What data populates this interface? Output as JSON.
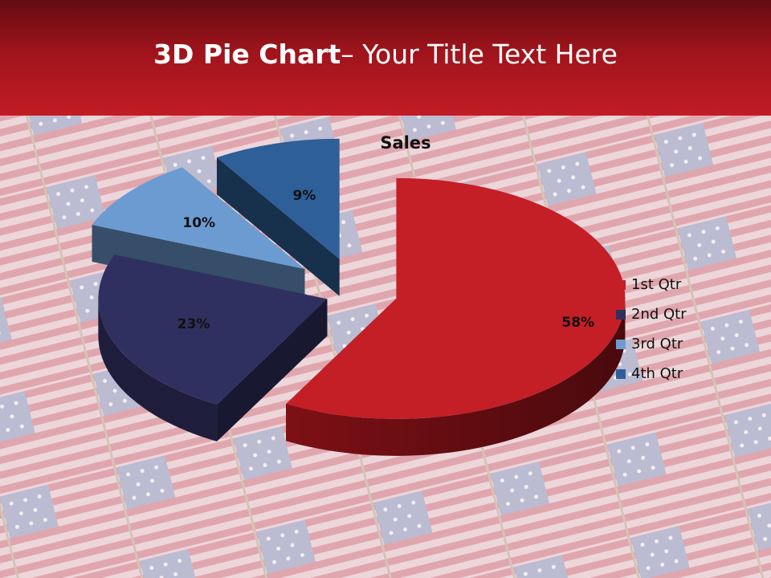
{
  "slide": {
    "title_bold": "3D Pie Chart",
    "title_rest": "– Your Title Text Here"
  },
  "chart_data": {
    "type": "pie",
    "title": "Sales",
    "categories": [
      "1st Qtr",
      "2nd Qtr",
      "3rd Qtr",
      "4th Qtr"
    ],
    "values": [
      58,
      23,
      10,
      9
    ],
    "labels": [
      "58%",
      "23%",
      "10%",
      "9%"
    ],
    "colors": [
      "#c41e27",
      "#303060",
      "#6c9bd2",
      "#2e5f98"
    ],
    "legend": "right",
    "exploded": true,
    "three_d": true
  }
}
